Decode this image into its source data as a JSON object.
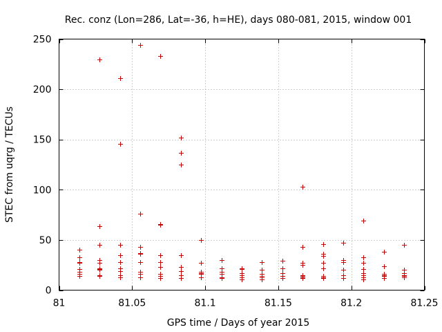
{
  "chart_data": {
    "type": "scatter",
    "title": "Rec. conz (Lon=286, Lat=-36, h=HE), days 080-081, 2015, window 001",
    "xlabel": "GPS time / Days of year 2015",
    "ylabel": "STEC from uqrg / TECUs",
    "xlim": [
      81,
      81.25
    ],
    "ylim": [
      0,
      250
    ],
    "xticks": [
      81,
      81.05,
      81.1,
      81.15,
      81.2,
      81.25
    ],
    "xtick_labels": [
      "81",
      "81.05",
      "81.1",
      "81.15",
      "81.2",
      "81.25"
    ],
    "yticks": [
      0,
      50,
      100,
      150,
      200,
      250
    ],
    "ytick_labels": [
      "0",
      "50",
      "100",
      "150",
      "200",
      "250"
    ],
    "grid": true,
    "marker": "+",
    "color": "#cc0000",
    "series": [
      {
        "name": "STEC",
        "points": [
          [
            81.0139,
            40
          ],
          [
            81.0139,
            33
          ],
          [
            81.0139,
            28
          ],
          [
            81.0139,
            27
          ],
          [
            81.0139,
            21
          ],
          [
            81.0139,
            18
          ],
          [
            81.0139,
            16
          ],
          [
            81.0139,
            14
          ],
          [
            81.0278,
            230
          ],
          [
            81.0278,
            64
          ],
          [
            81.0278,
            45
          ],
          [
            81.0278,
            30
          ],
          [
            81.0278,
            27
          ],
          [
            81.0278,
            22
          ],
          [
            81.0278,
            21
          ],
          [
            81.0278,
            20
          ],
          [
            81.0278,
            15
          ],
          [
            81.0278,
            14
          ],
          [
            81.0417,
            211
          ],
          [
            81.0417,
            146
          ],
          [
            81.0417,
            45
          ],
          [
            81.0417,
            35
          ],
          [
            81.0417,
            28
          ],
          [
            81.0417,
            22
          ],
          [
            81.0417,
            19
          ],
          [
            81.0417,
            15
          ],
          [
            81.0417,
            13
          ],
          [
            81.0556,
            244
          ],
          [
            81.0556,
            76
          ],
          [
            81.0556,
            43
          ],
          [
            81.0556,
            37
          ],
          [
            81.0556,
            36
          ],
          [
            81.0556,
            28
          ],
          [
            81.0556,
            18
          ],
          [
            81.0556,
            16
          ],
          [
            81.0556,
            13
          ],
          [
            81.0694,
            233
          ],
          [
            81.0694,
            66
          ],
          [
            81.0694,
            65
          ],
          [
            81.0694,
            35
          ],
          [
            81.0694,
            28
          ],
          [
            81.0694,
            23
          ],
          [
            81.0694,
            16
          ],
          [
            81.0694,
            14
          ],
          [
            81.0694,
            12
          ],
          [
            81.0833,
            152
          ],
          [
            81.0833,
            137
          ],
          [
            81.0833,
            125
          ],
          [
            81.0833,
            35
          ],
          [
            81.0833,
            23
          ],
          [
            81.0833,
            19
          ],
          [
            81.0833,
            15
          ],
          [
            81.0833,
            12
          ],
          [
            81.0972,
            50
          ],
          [
            81.0972,
            27
          ],
          [
            81.0972,
            18
          ],
          [
            81.0972,
            17
          ],
          [
            81.0972,
            16
          ],
          [
            81.0972,
            13
          ],
          [
            81.1111,
            30
          ],
          [
            81.1111,
            22
          ],
          [
            81.1111,
            18
          ],
          [
            81.1111,
            16
          ],
          [
            81.1111,
            13
          ],
          [
            81.1111,
            12
          ],
          [
            81.125,
            22
          ],
          [
            81.125,
            21
          ],
          [
            81.125,
            17
          ],
          [
            81.125,
            15
          ],
          [
            81.125,
            13
          ],
          [
            81.125,
            11
          ],
          [
            81.1389,
            28
          ],
          [
            81.1389,
            20
          ],
          [
            81.1389,
            16
          ],
          [
            81.1389,
            14
          ],
          [
            81.1389,
            13
          ],
          [
            81.1389,
            11
          ],
          [
            81.1528,
            29
          ],
          [
            81.1528,
            22
          ],
          [
            81.1528,
            17
          ],
          [
            81.1528,
            14
          ],
          [
            81.1528,
            12
          ],
          [
            81.1667,
            103
          ],
          [
            81.1667,
            43
          ],
          [
            81.1667,
            27
          ],
          [
            81.1667,
            25
          ],
          [
            81.1667,
            15
          ],
          [
            81.1667,
            14
          ],
          [
            81.1667,
            13
          ],
          [
            81.1667,
            12
          ],
          [
            81.1806,
            46
          ],
          [
            81.1806,
            36
          ],
          [
            81.1806,
            34
          ],
          [
            81.1806,
            27
          ],
          [
            81.1806,
            22
          ],
          [
            81.1806,
            14
          ],
          [
            81.1806,
            13
          ],
          [
            81.1806,
            12
          ],
          [
            81.1944,
            47
          ],
          [
            81.1944,
            30
          ],
          [
            81.1944,
            28
          ],
          [
            81.1944,
            20
          ],
          [
            81.1944,
            15
          ],
          [
            81.1944,
            12
          ],
          [
            81.2083,
            69
          ],
          [
            81.2083,
            33
          ],
          [
            81.2083,
            27
          ],
          [
            81.2083,
            21
          ],
          [
            81.2083,
            17
          ],
          [
            81.2083,
            15
          ],
          [
            81.2083,
            13
          ],
          [
            81.2083,
            11
          ],
          [
            81.2222,
            38
          ],
          [
            81.2222,
            24
          ],
          [
            81.2222,
            16
          ],
          [
            81.2222,
            15
          ],
          [
            81.2222,
            14
          ],
          [
            81.2222,
            12
          ],
          [
            81.2361,
            45
          ],
          [
            81.2361,
            20
          ],
          [
            81.2361,
            17
          ],
          [
            81.2361,
            15
          ],
          [
            81.2361,
            14
          ],
          [
            81.2361,
            13
          ]
        ]
      }
    ]
  }
}
